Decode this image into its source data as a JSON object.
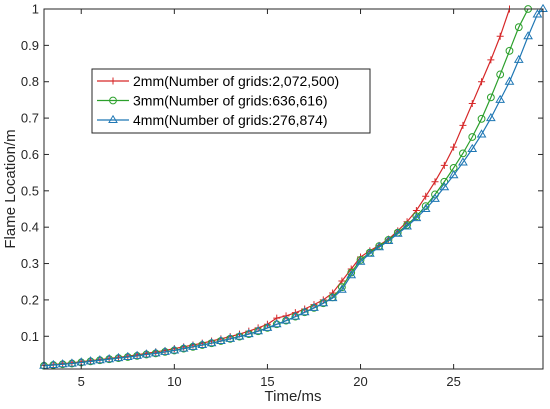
{
  "chart_data": {
    "type": "line",
    "title": "",
    "xlabel": "Time/ms",
    "ylabel": "Flame Location/m",
    "xlim": [
      3,
      29.8
    ],
    "ylim": [
      0.01,
      1.0
    ],
    "xticks": [
      5,
      10,
      15,
      20,
      25
    ],
    "yticks": [
      0.1,
      0.2,
      0.3,
      0.4,
      0.5,
      0.6,
      0.7,
      0.8,
      0.9,
      1
    ],
    "grid": false,
    "legend_position": "upper-left",
    "series": [
      {
        "name": "2mm(Number of grids:2,072,500)",
        "color": "#d62728",
        "marker": "plus",
        "points": [
          [
            3.0,
            0.02
          ],
          [
            3.5,
            0.022
          ],
          [
            4.0,
            0.025
          ],
          [
            4.5,
            0.027
          ],
          [
            5.0,
            0.03
          ],
          [
            5.5,
            0.033
          ],
          [
            6.0,
            0.036
          ],
          [
            6.5,
            0.039
          ],
          [
            7.0,
            0.042
          ],
          [
            7.5,
            0.045
          ],
          [
            8.0,
            0.049
          ],
          [
            8.5,
            0.053
          ],
          [
            9.0,
            0.057
          ],
          [
            9.5,
            0.061
          ],
          [
            10.0,
            0.066
          ],
          [
            10.5,
            0.071
          ],
          [
            11.0,
            0.076
          ],
          [
            11.5,
            0.081
          ],
          [
            12.0,
            0.087
          ],
          [
            12.5,
            0.093
          ],
          [
            13.0,
            0.099
          ],
          [
            13.5,
            0.106
          ],
          [
            14.0,
            0.114
          ],
          [
            14.5,
            0.123
          ],
          [
            15.0,
            0.133
          ],
          [
            15.5,
            0.15
          ],
          [
            16.0,
            0.156
          ],
          [
            16.5,
            0.165
          ],
          [
            17.0,
            0.175
          ],
          [
            17.5,
            0.187
          ],
          [
            18.0,
            0.2
          ],
          [
            18.5,
            0.219
          ],
          [
            19.0,
            0.252
          ],
          [
            19.5,
            0.285
          ],
          [
            20.0,
            0.318
          ],
          [
            20.5,
            0.335
          ],
          [
            21.0,
            0.35
          ],
          [
            21.5,
            0.367
          ],
          [
            22.0,
            0.39
          ],
          [
            22.5,
            0.415
          ],
          [
            23.0,
            0.446
          ],
          [
            23.5,
            0.485
          ],
          [
            24.0,
            0.525
          ],
          [
            24.5,
            0.57
          ],
          [
            25.0,
            0.62
          ],
          [
            25.5,
            0.68
          ],
          [
            26.0,
            0.74
          ],
          [
            26.5,
            0.8
          ],
          [
            27.0,
            0.86
          ],
          [
            27.5,
            0.925
          ],
          [
            28.0,
            1.0
          ]
        ]
      },
      {
        "name": "3mm(Number of grids:636,616)",
        "color": "#2ca02c",
        "marker": "circle",
        "points": [
          [
            3.0,
            0.019
          ],
          [
            3.5,
            0.021
          ],
          [
            4.0,
            0.023
          ],
          [
            4.5,
            0.025
          ],
          [
            5.0,
            0.028
          ],
          [
            5.5,
            0.031
          ],
          [
            6.0,
            0.034
          ],
          [
            6.5,
            0.037
          ],
          [
            7.0,
            0.04
          ],
          [
            7.5,
            0.043
          ],
          [
            8.0,
            0.046
          ],
          [
            8.5,
            0.05
          ],
          [
            9.0,
            0.053
          ],
          [
            9.5,
            0.057
          ],
          [
            10.0,
            0.061
          ],
          [
            10.5,
            0.066
          ],
          [
            11.0,
            0.071
          ],
          [
            11.5,
            0.076
          ],
          [
            12.0,
            0.081
          ],
          [
            12.5,
            0.087
          ],
          [
            13.0,
            0.093
          ],
          [
            13.5,
            0.099
          ],
          [
            14.0,
            0.106
          ],
          [
            14.5,
            0.114
          ],
          [
            15.0,
            0.123
          ],
          [
            15.5,
            0.133
          ],
          [
            16.0,
            0.143
          ],
          [
            16.5,
            0.154
          ],
          [
            17.0,
            0.166
          ],
          [
            17.5,
            0.178
          ],
          [
            18.0,
            0.191
          ],
          [
            18.5,
            0.207
          ],
          [
            19.0,
            0.235
          ],
          [
            19.5,
            0.275
          ],
          [
            20.0,
            0.31
          ],
          [
            20.5,
            0.33
          ],
          [
            21.0,
            0.348
          ],
          [
            21.5,
            0.365
          ],
          [
            22.0,
            0.385
          ],
          [
            22.5,
            0.406
          ],
          [
            23.0,
            0.43
          ],
          [
            23.5,
            0.458
          ],
          [
            24.0,
            0.49
          ],
          [
            24.5,
            0.525
          ],
          [
            25.0,
            0.563
          ],
          [
            25.5,
            0.603
          ],
          [
            26.0,
            0.648
          ],
          [
            26.5,
            0.698
          ],
          [
            27.0,
            0.757
          ],
          [
            27.5,
            0.82
          ],
          [
            28.0,
            0.885
          ],
          [
            28.5,
            0.95
          ],
          [
            29.0,
            1.0
          ]
        ]
      },
      {
        "name": "4mm(Number of grids:276,874)",
        "color": "#1f77b4",
        "marker": "triangle",
        "points": [
          [
            3.0,
            0.019
          ],
          [
            3.5,
            0.021
          ],
          [
            4.0,
            0.023
          ],
          [
            4.5,
            0.025
          ],
          [
            5.0,
            0.028
          ],
          [
            5.5,
            0.031
          ],
          [
            6.0,
            0.034
          ],
          [
            6.5,
            0.037
          ],
          [
            7.0,
            0.04
          ],
          [
            7.5,
            0.043
          ],
          [
            8.0,
            0.046
          ],
          [
            8.5,
            0.05
          ],
          [
            9.0,
            0.053
          ],
          [
            9.5,
            0.057
          ],
          [
            10.0,
            0.061
          ],
          [
            10.5,
            0.066
          ],
          [
            11.0,
            0.071
          ],
          [
            11.5,
            0.076
          ],
          [
            12.0,
            0.081
          ],
          [
            12.5,
            0.087
          ],
          [
            13.0,
            0.093
          ],
          [
            13.5,
            0.099
          ],
          [
            14.0,
            0.106
          ],
          [
            14.5,
            0.114
          ],
          [
            15.0,
            0.123
          ],
          [
            15.5,
            0.133
          ],
          [
            16.0,
            0.143
          ],
          [
            16.5,
            0.154
          ],
          [
            17.0,
            0.166
          ],
          [
            17.5,
            0.178
          ],
          [
            18.0,
            0.191
          ],
          [
            18.5,
            0.205
          ],
          [
            19.0,
            0.228
          ],
          [
            19.5,
            0.268
          ],
          [
            20.0,
            0.305
          ],
          [
            20.5,
            0.327
          ],
          [
            21.0,
            0.345
          ],
          [
            21.5,
            0.362
          ],
          [
            22.0,
            0.382
          ],
          [
            22.5,
            0.402
          ],
          [
            23.0,
            0.425
          ],
          [
            23.5,
            0.45
          ],
          [
            24.0,
            0.478
          ],
          [
            24.5,
            0.51
          ],
          [
            25.0,
            0.543
          ],
          [
            25.5,
            0.578
          ],
          [
            26.0,
            0.615
          ],
          [
            26.5,
            0.655
          ],
          [
            27.0,
            0.7
          ],
          [
            27.5,
            0.75
          ],
          [
            28.0,
            0.8
          ],
          [
            28.5,
            0.86
          ],
          [
            29.0,
            0.925
          ],
          [
            29.5,
            0.985
          ],
          [
            29.8,
            1.0
          ]
        ]
      }
    ]
  }
}
